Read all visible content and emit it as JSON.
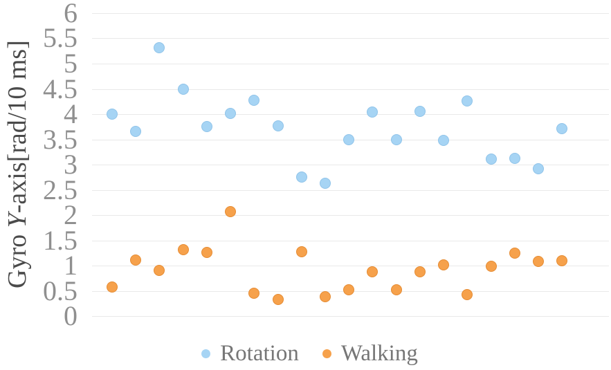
{
  "y_axis": {
    "title_prefix": "Gyro ",
    "title_italic": "Y",
    "title_suffix": "-axis[rad/10 ms]"
  },
  "colors": {
    "background": "#ffffff",
    "grid": "#e9e9e9",
    "tick_label": "#8f8f8f",
    "axis_title": "#4a4a4a",
    "legend_text": "#767676"
  },
  "chart_data": {
    "type": "scatter",
    "title": "",
    "xlabel": "",
    "ylabel": "Gyro Y-axis[rad/10 ms]",
    "x": [
      1,
      2,
      3,
      4,
      5,
      6,
      7,
      8,
      9,
      10,
      11,
      12,
      13,
      14,
      15,
      16,
      17,
      18,
      19,
      20
    ],
    "series": [
      {
        "name": "Rotation",
        "color": "#a6d4f4",
        "edge": "#8fc3e9",
        "values": [
          4.0,
          3.66,
          5.32,
          4.5,
          3.75,
          4.02,
          4.27,
          3.77,
          2.76,
          2.63,
          3.49,
          4.04,
          3.49,
          4.05,
          3.48,
          4.26,
          3.11,
          3.13,
          2.92,
          3.71
        ]
      },
      {
        "name": "Walking",
        "color": "#f6a14b",
        "edge": "#e58b32",
        "values": [
          0.57,
          1.11,
          0.9,
          1.31,
          1.26,
          2.07,
          0.45,
          0.33,
          1.27,
          0.39,
          0.52,
          0.87,
          0.52,
          0.87,
          1.02,
          0.42,
          0.98,
          1.24,
          1.08,
          1.1
        ]
      }
    ],
    "ylim": [
      0,
      6
    ],
    "yticks": [
      0,
      0.5,
      1,
      1.5,
      2,
      2.5,
      3,
      3.5,
      4,
      4.5,
      5,
      5.5,
      6
    ],
    "grid": "horizontal",
    "x_axis_labels": "none",
    "legend_position": "bottom"
  }
}
